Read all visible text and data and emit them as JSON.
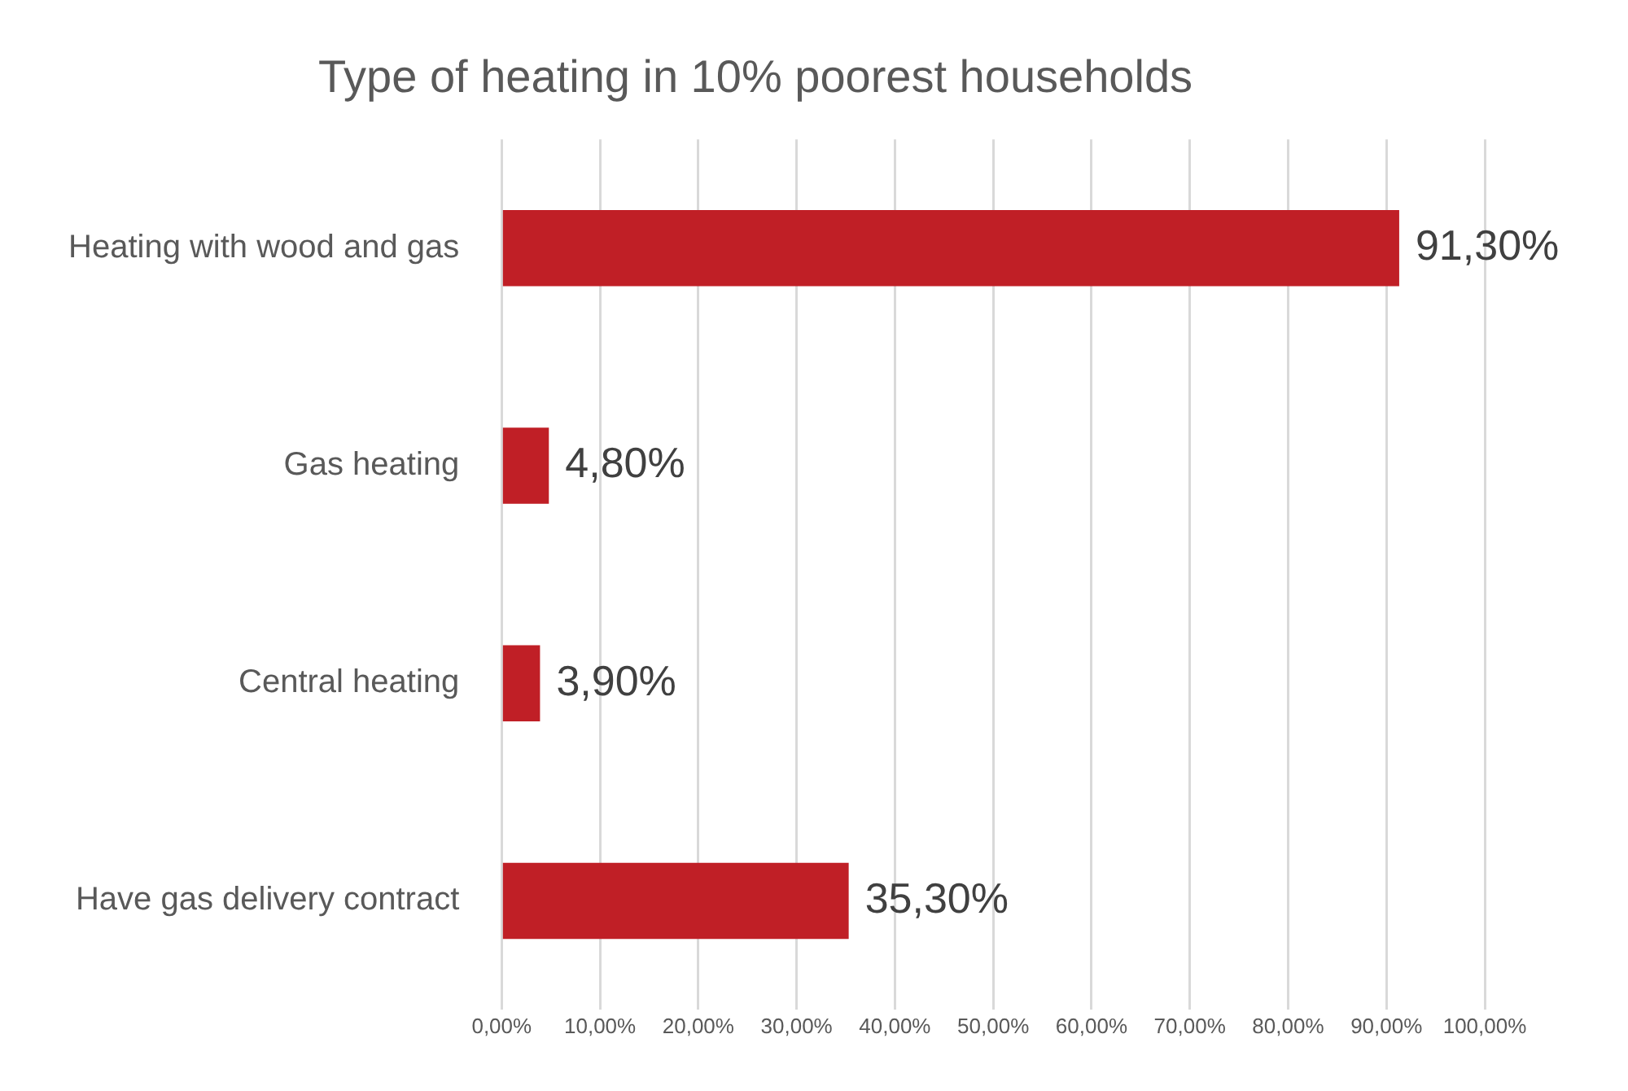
{
  "chart_data": {
    "type": "bar",
    "orientation": "horizontal",
    "title": "Type of heating in 10% poorest households",
    "categories": [
      "Heating with wood and gas",
      "Gas heating",
      "Central heating",
      "Have gas delivery contract"
    ],
    "values": [
      91.3,
      4.8,
      3.9,
      35.3
    ],
    "color": "#c01f26",
    "value_labels": [
      "91,30%",
      "4,80%",
      "3,90%",
      "35,30%"
    ],
    "xlim": [
      0,
      100
    ],
    "xticks": [
      {
        "value": 0,
        "label": "0,00%"
      },
      {
        "value": 10,
        "label": "10,00%"
      },
      {
        "value": 20,
        "label": "20,00%"
      },
      {
        "value": 30,
        "label": "30,00%"
      },
      {
        "value": 40,
        "label": "40,00%"
      },
      {
        "value": 50,
        "label": "50,00%"
      },
      {
        "value": 60,
        "label": "60,00%"
      },
      {
        "value": 70,
        "label": "70,00%"
      },
      {
        "value": 80,
        "label": "80,00%"
      },
      {
        "value": 90,
        "label": "90,00%"
      },
      {
        "value": 100,
        "label": "100,00%"
      }
    ],
    "grid": "x",
    "legend": false
  }
}
